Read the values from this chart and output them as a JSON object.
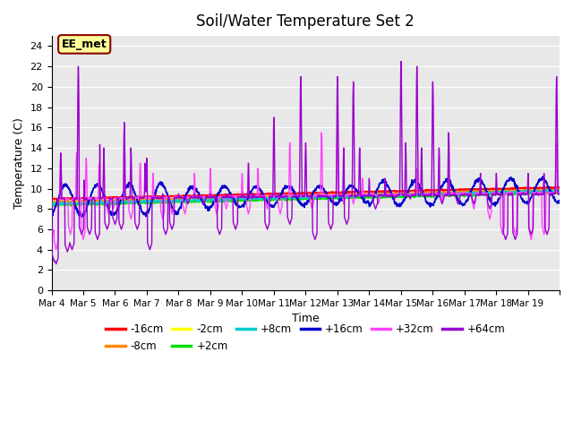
{
  "title": "Soil/Water Temperature Set 2",
  "xlabel": "Time",
  "ylabel": "Temperature (C)",
  "ylim": [
    0,
    25
  ],
  "yticks": [
    0,
    2,
    4,
    6,
    8,
    10,
    12,
    14,
    16,
    18,
    20,
    22,
    24
  ],
  "bg_color": "#e8e8e8",
  "fig_color": "#ffffff",
  "annotation_text": "EE_met",
  "annotation_bg": "#ffff99",
  "annotation_border": "#8b0000",
  "series_colors": {
    "-16cm": "#ff0000",
    "-8cm": "#ff8800",
    "-2cm": "#ffff00",
    "+2cm": "#00dd00",
    "+8cm": "#00cccc",
    "+16cm": "#0000cc",
    "+32cm": "#ff44ff",
    "+64cm": "#9900cc"
  },
  "n_days": 16,
  "pts_per_day": 96,
  "xtick_labels": [
    "Mar 4",
    "Mar 5",
    "Mar 6",
    "Mar 7",
    "Mar 8",
    "Mar 9",
    "Mar 10",
    "Mar 11",
    "Mar 12",
    "Mar 13",
    "Mar 14",
    "Mar 15",
    "Mar 16",
    "Mar 17",
    "Mar 18",
    "Mar 19"
  ],
  "legend_order": [
    "-16cm",
    "-8cm",
    "-2cm",
    "+2cm",
    "+8cm",
    "+16cm",
    "+32cm",
    "+64cm"
  ]
}
